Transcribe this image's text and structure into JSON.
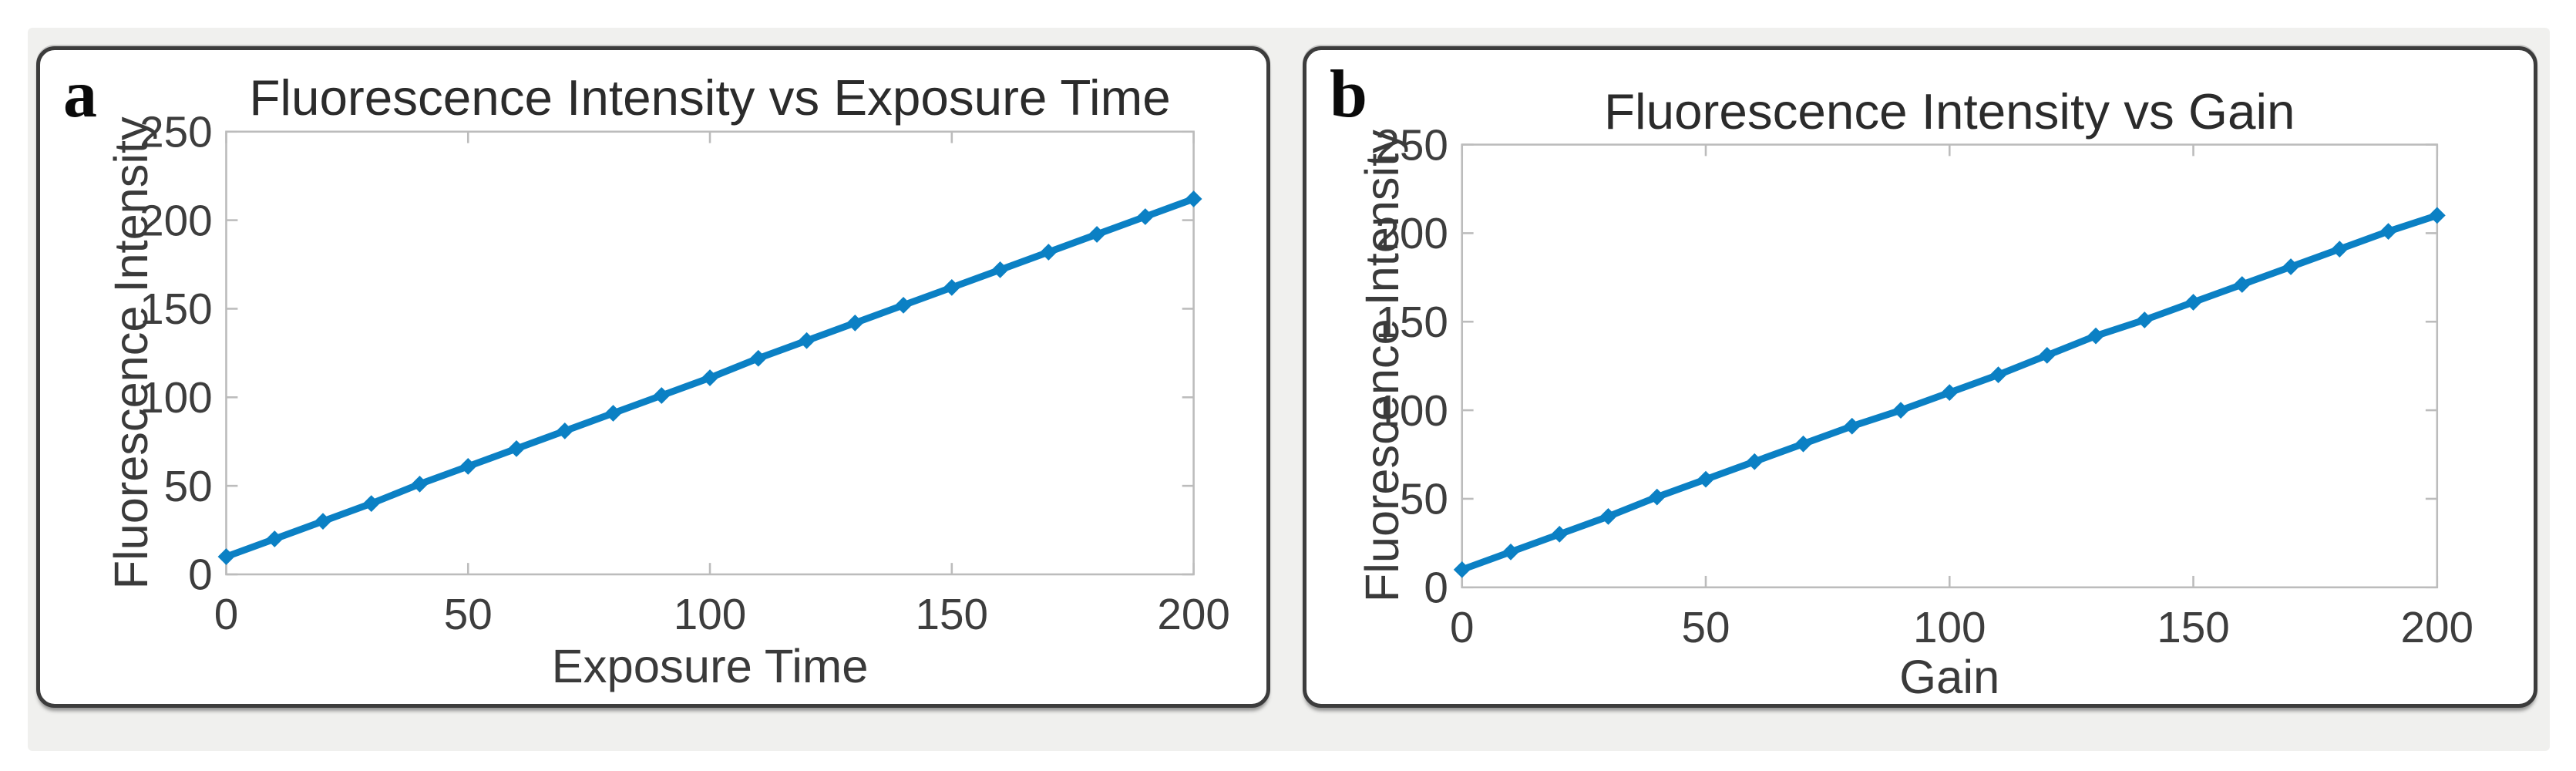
{
  "figure": {
    "background_color": "#ffffff",
    "canvas_color": "#f0f0ee",
    "panel_border_color": "#3c3c3c"
  },
  "colors": {
    "line": "#0b80c4",
    "axis": "#bcbcbc",
    "tick_label": "#3d3d3d",
    "axis_label": "#3a3a3a",
    "title": "#2b2b2b"
  },
  "chart_data": [
    {
      "type": "line",
      "panel_label": "a",
      "title": "Fluorescence Intensity vs Exposure Time",
      "xlabel": "Exposure Time",
      "ylabel": "Fluorescence Intensity",
      "x": [
        0,
        10,
        20,
        30,
        40,
        50,
        60,
        70,
        80,
        90,
        100,
        110,
        120,
        130,
        140,
        150,
        160,
        170,
        180,
        190,
        200
      ],
      "y": [
        10,
        20,
        30,
        40,
        51,
        61,
        71,
        81,
        91,
        101,
        111,
        122,
        132,
        142,
        152,
        162,
        172,
        182,
        192,
        202,
        212
      ],
      "xlim": [
        0,
        200
      ],
      "ylim": [
        0,
        250
      ],
      "xticks": [
        0,
        50,
        100,
        150,
        200
      ],
      "yticks": [
        0,
        50,
        100,
        150,
        200,
        250
      ],
      "grid": false,
      "marker": "diamond",
      "line_color": "#0b80c4"
    },
    {
      "type": "line",
      "panel_label": "b",
      "title": "Fluorescence Intensity vs Gain",
      "xlabel": "Gain",
      "ylabel": "Fluorescence Intensity",
      "x": [
        0,
        10,
        20,
        30,
        40,
        50,
        60,
        70,
        80,
        90,
        100,
        110,
        120,
        130,
        140,
        150,
        160,
        170,
        180,
        190,
        200
      ],
      "y": [
        10,
        20,
        30,
        40,
        51,
        61,
        71,
        81,
        91,
        100,
        110,
        120,
        131,
        142,
        151,
        161,
        171,
        181,
        191,
        201,
        210
      ],
      "xlim": [
        0,
        200
      ],
      "ylim": [
        0,
        250
      ],
      "xticks": [
        0,
        50,
        100,
        150,
        200
      ],
      "yticks": [
        0,
        50,
        100,
        150,
        200,
        250
      ],
      "grid": false,
      "marker": "diamond",
      "line_color": "#0b80c4"
    }
  ]
}
